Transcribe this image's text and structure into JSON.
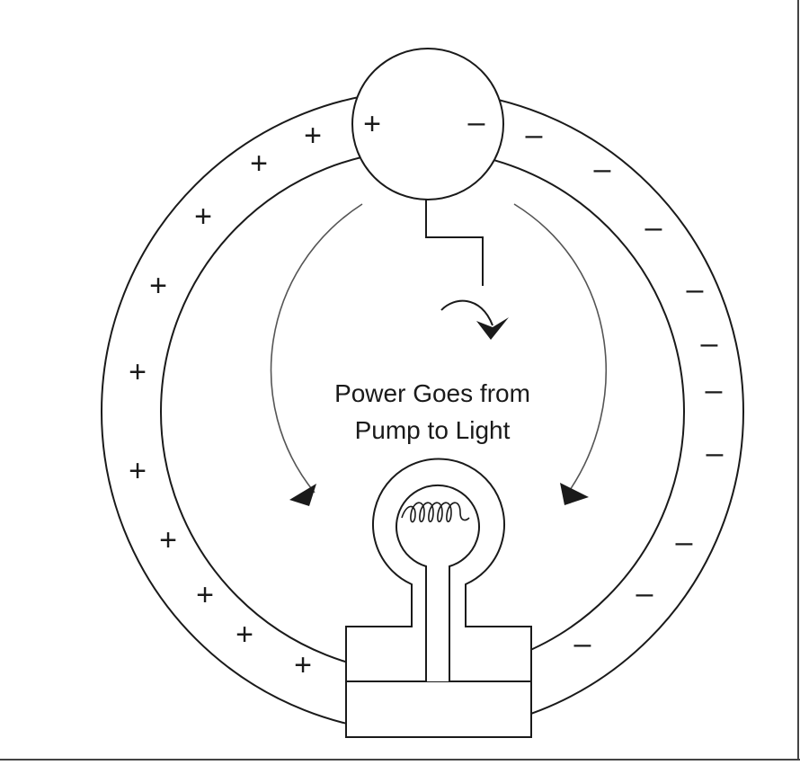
{
  "diagram": {
    "caption_line1": "Power Goes from",
    "caption_line2": "Pump to Light",
    "pump_plus": "+",
    "pump_minus": "–",
    "plus_symbol": "+",
    "minus_symbol": "–"
  },
  "colors": {
    "stroke": "#1a1a1a",
    "background": "#ffffff",
    "arrow": "#555555"
  }
}
